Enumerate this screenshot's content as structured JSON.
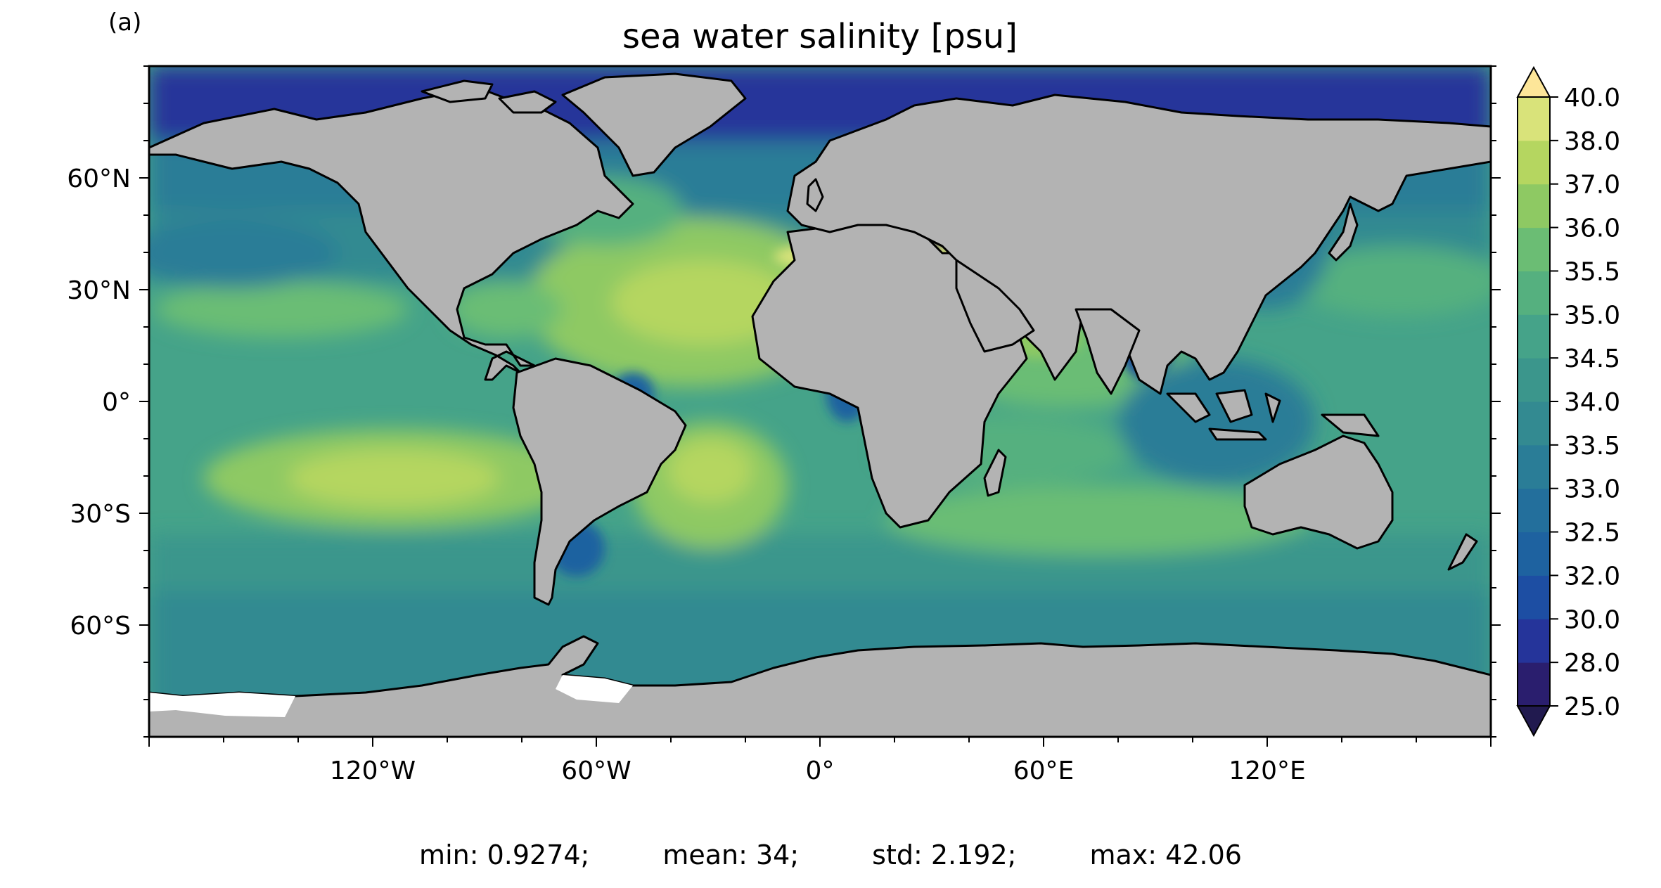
{
  "panel_label": "(a)",
  "title": "sea water salinity [psu]",
  "map": {
    "projection": "PlateCarree",
    "lon_range": [
      -180,
      180
    ],
    "lat_range": [
      -90,
      90
    ],
    "land_color": "#b3b3b3",
    "coastline_color": "#000000",
    "missing_color": "#ffffff",
    "x_ticks": [
      {
        "lon": -120,
        "label": "120°W"
      },
      {
        "lon": -60,
        "label": "60°W"
      },
      {
        "lon": 0,
        "label": "0°"
      },
      {
        "lon": 60,
        "label": "60°E"
      },
      {
        "lon": 120,
        "label": "120°E"
      }
    ],
    "y_ticks": [
      {
        "lat": 60,
        "label": "60°N"
      },
      {
        "lat": 30,
        "label": "30°N"
      },
      {
        "lat": 0,
        "label": "0°"
      },
      {
        "lat": -30,
        "label": "30°S"
      },
      {
        "lat": -60,
        "label": "60°S"
      }
    ]
  },
  "colorbar": {
    "extend": "both",
    "levels": [
      "25.0",
      "28.0",
      "30.0",
      "32.0",
      "32.5",
      "33.0",
      "33.5",
      "34.0",
      "34.5",
      "35.0",
      "35.5",
      "36.0",
      "37.0",
      "38.0",
      "40.0"
    ],
    "colors": [
      "#2a1e6e",
      "#25349a",
      "#1d4ea3",
      "#1e62a0",
      "#236f9c",
      "#2a7d97",
      "#338a91",
      "#3b968c",
      "#45a389",
      "#55b07f",
      "#6bbd74",
      "#8ec963",
      "#b5d660",
      "#d9e37a"
    ],
    "under_color": "#211a4f",
    "over_color": "#fde699"
  },
  "stats": {
    "min": "min: 0.9274;",
    "mean": "mean: 34;",
    "std": "std: 2.192;",
    "max": "max: 42.06"
  }
}
